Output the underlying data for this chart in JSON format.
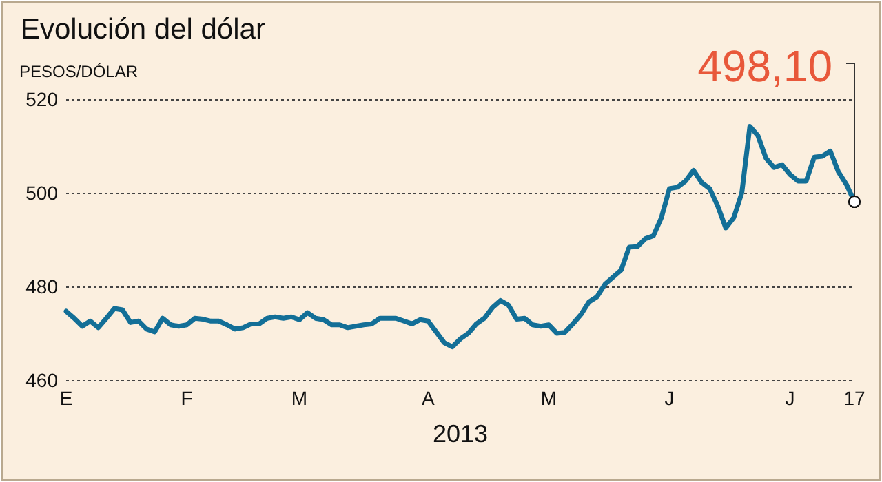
{
  "chart_data": {
    "type": "line",
    "title": "Evolución del dólar",
    "ylabel": "PESOS/DÓLAR",
    "xlabel": "2013",
    "categories": [
      "E",
      null,
      null,
      null,
      null,
      null,
      null,
      null,
      null,
      null,
      null,
      null,
      null,
      null,
      null,
      "F",
      null,
      null,
      null,
      null,
      null,
      null,
      null,
      null,
      null,
      null,
      null,
      null,
      null,
      "M",
      null,
      null,
      null,
      null,
      null,
      null,
      null,
      null,
      null,
      null,
      null,
      null,
      null,
      null,
      null,
      "A",
      null,
      null,
      null,
      null,
      null,
      null,
      null,
      null,
      null,
      null,
      null,
      null,
      null,
      null,
      "M",
      null,
      null,
      null,
      null,
      null,
      null,
      null,
      null,
      null,
      null,
      null,
      null,
      null,
      null,
      "J",
      null,
      null,
      null,
      null,
      null,
      null,
      null,
      null,
      null,
      null,
      null,
      null,
      null,
      null,
      "J",
      null,
      null,
      null,
      null,
      null,
      null,
      null,
      "17"
    ],
    "series": [
      {
        "color": "#136f97",
        "values": [
          474.7,
          473.2,
          471.5,
          472.6,
          471.2,
          473.2,
          475.3,
          475.0,
          472.3,
          472.6,
          470.9,
          470.3,
          473.2,
          471.8,
          471.5,
          471.8,
          473.2,
          473.0,
          472.6,
          472.6,
          471.8,
          470.9,
          471.2,
          472.0,
          472.0,
          473.2,
          473.5,
          473.2,
          473.5,
          472.9,
          474.4,
          473.2,
          472.9,
          471.8,
          471.8,
          471.2,
          471.5,
          471.8,
          472.0,
          473.2,
          473.2,
          473.2,
          472.6,
          472.0,
          472.9,
          472.6,
          470.3,
          468.0,
          467.1,
          468.8,
          470.0,
          472.0,
          473.2,
          475.5,
          477.0,
          476.0,
          473.0,
          473.2,
          471.8,
          471.5,
          471.8,
          470.0,
          470.2,
          472.0,
          474.0,
          476.7,
          477.8,
          480.5,
          482.0,
          483.5,
          488.4,
          488.5,
          490.2,
          490.8,
          494.7,
          500.9,
          501.2,
          502.5,
          504.8,
          502.2,
          500.9,
          497.2,
          492.5,
          494.7,
          500.0,
          514.2,
          512.2,
          507.4,
          505.4,
          506.0,
          503.9,
          502.5,
          502.5,
          507.6,
          507.8,
          508.9,
          504.5,
          501.8,
          498.1
        ]
      }
    ],
    "ylim": [
      460,
      520
    ],
    "yticks": [
      460,
      480,
      500,
      520
    ],
    "grid": "y",
    "marker": "none",
    "line_style": "solid",
    "annotations": [
      {
        "text": "498,10",
        "x": "17",
        "y": 498.1
      }
    ]
  }
}
